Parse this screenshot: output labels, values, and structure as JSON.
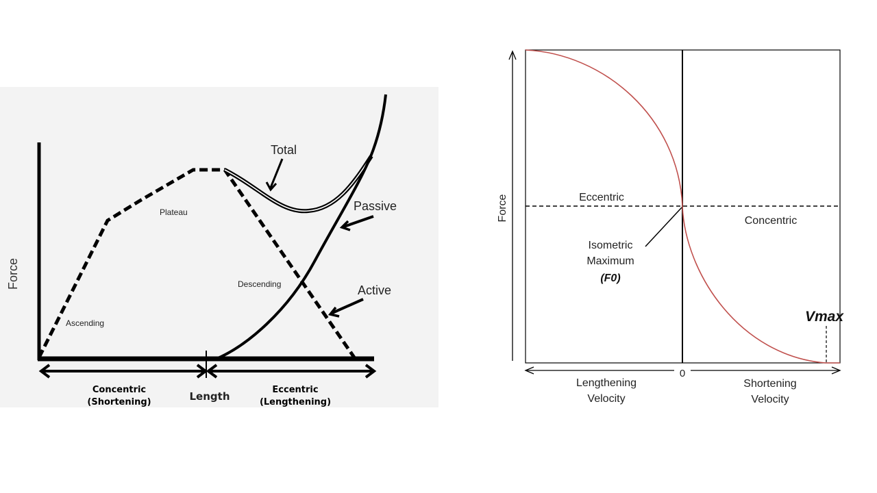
{
  "length_tension": {
    "y_axis_label": "Force",
    "x_axis_label": "Length",
    "region_labels": {
      "ascending": "Ascending",
      "plateau": "Plateau",
      "descending": "Descending"
    },
    "curve_labels": {
      "total": "Total",
      "passive": "Passive",
      "active": "Active"
    },
    "arrow_labels": {
      "concentric_line1": "Concentric",
      "concentric_line2": "(Shortening)",
      "eccentric_line1": "Eccentric",
      "eccentric_line2": "(Lengthening)"
    }
  },
  "force_velocity": {
    "y_axis_label": "Force",
    "eccentric_label": "Eccentric",
    "concentric_label": "Concentric",
    "isometric_line1": "Isometric",
    "isometric_line2": "Maximum",
    "isometric_line3": "(F0)",
    "vmax_label": "Vmax",
    "zero_label": "0",
    "lengthening_line1": "Lengthening",
    "lengthening_line2": "Velocity",
    "shortening_line1": "Shortening",
    "shortening_line2": "Velocity",
    "curve_color": "#c0504d"
  }
}
